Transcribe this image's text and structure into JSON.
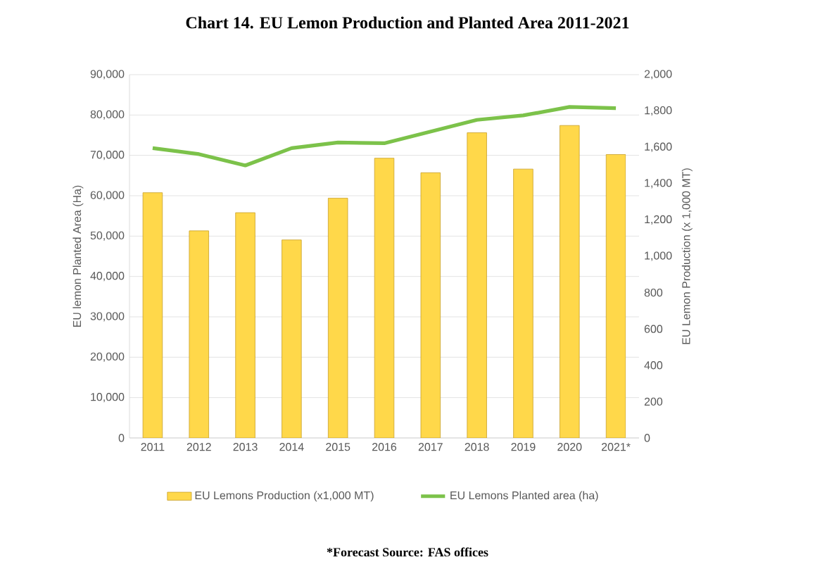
{
  "chart_data": {
    "type": "bar",
    "title": "Chart 14. EU Lemon Production and Planted Area 2011-2021",
    "categories": [
      "2011",
      "2012",
      "2013",
      "2014",
      "2015",
      "2016",
      "2017",
      "2018",
      "2019",
      "2020",
      "2021*"
    ],
    "series": [
      {
        "name": "EU Lemons Production (x1,000 MT)",
        "axis": "y2",
        "color": "#ffd84a",
        "values": [
          1350,
          1140,
          1240,
          1090,
          1320,
          1540,
          1460,
          1680,
          1480,
          1720,
          1560
        ]
      },
      {
        "name": "EU Lemons Planted area (ha)",
        "type": "line",
        "color": "#7cc24a",
        "values": [
          71800,
          70300,
          67500,
          71800,
          73200,
          73000,
          75900,
          78800,
          79900,
          82000,
          81700
        ]
      }
    ],
    "ylabel": "EU lemon Planted Area (Ha)",
    "y2label": "EU Lemon Production (x 1,000 MT)",
    "ylim": [
      0,
      90000
    ],
    "yticks": [
      0,
      {
        "value": 10000,
        "label": "10,000"
      },
      {
        "value": 20000,
        "label": "20,000"
      },
      {
        "value": 30000,
        "label": "30,000"
      },
      {
        "value": 40000,
        "label": "40,000"
      },
      {
        "value": 50000,
        "label": "50,000"
      },
      {
        "value": 60000,
        "label": "60,000"
      },
      {
        "value": 70000,
        "label": "70,000"
      },
      {
        "value": 80000,
        "label": "80,000"
      },
      {
        "value": 90000,
        "label": "90,000"
      }
    ],
    "y2lim": [
      0,
      2000
    ],
    "y2ticks": [
      0,
      200,
      400,
      600,
      800,
      {
        "value": 1000,
        "label": "1,000"
      },
      {
        "value": 1200,
        "label": "1,200"
      },
      {
        "value": 1400,
        "label": "1,400"
      },
      {
        "value": 1600,
        "label": "1,600"
      },
      {
        "value": 1800,
        "label": "1,800"
      },
      {
        "value": 2000,
        "label": "2,000"
      }
    ],
    "grid": "y",
    "legend": "bottom",
    "annotations": [
      "*Forecast    Source: FAS offices"
    ]
  }
}
